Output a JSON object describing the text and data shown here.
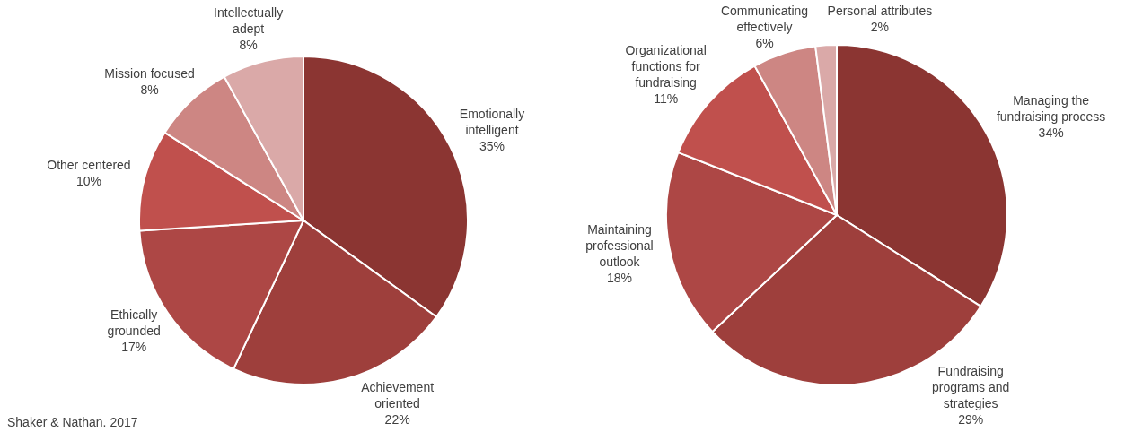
{
  "chart_data": [
    {
      "type": "pie",
      "categories": [
        "Emotionally intelligent",
        "Achievement oriented",
        "Ethically grounded",
        "Other centered",
        "Mission focused",
        "Intellectually adept"
      ],
      "values": [
        35,
        22,
        17,
        10,
        8,
        8
      ],
      "colors": [
        "#8b3532",
        "#9e3f3c",
        "#ad4745",
        "#c0504d",
        "#cd8683",
        "#daa9a8"
      ],
      "value_labels": [
        "35%",
        "22%",
        "17%",
        "10%",
        "8%",
        "8%"
      ],
      "annotations": [
        "Shaker & Nathan. 2017"
      ]
    },
    {
      "type": "pie",
      "categories": [
        "Managing the fundraising process",
        "Fundraising programs and strategies",
        "Maintaining professional outlook",
        "Organizational functions for fundraising",
        "Communicating effectively",
        "Personal attributes"
      ],
      "values": [
        34,
        29,
        18,
        11,
        6,
        2
      ],
      "colors": [
        "#8b3532",
        "#9e3f3c",
        "#ad4745",
        "#c0504d",
        "#cd8683",
        "#daa9a8"
      ],
      "value_labels": [
        "34%",
        "29%",
        "18%",
        "11%",
        "6%",
        "2%"
      ]
    }
  ]
}
